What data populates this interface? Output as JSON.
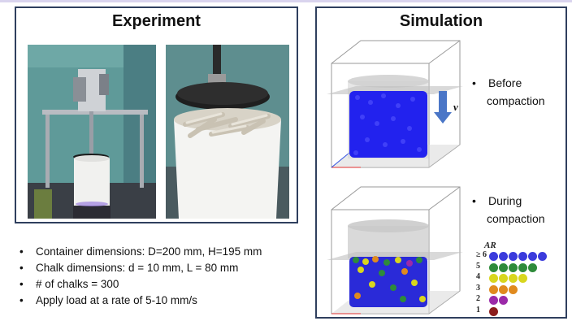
{
  "experiment": {
    "title": "Experiment",
    "bullets": [
      "Container dimensions: D=200 mm, H=195 mm",
      "Chalk dimensions: d = 10 mm, L = 80 mm",
      "# of chalks = 300",
      "Apply load at a rate of 5-10 mm/s"
    ]
  },
  "simulation": {
    "title": "Simulation",
    "before_label_1": "Before",
    "before_label_2": "compaction",
    "during_label_1": "During",
    "during_label_2": "compaction",
    "velocity_symbol": "v",
    "legend": {
      "title": "AR",
      "rows": [
        {
          "label": "≥ 6",
          "count": 6,
          "color": "#3b3bdc"
        },
        {
          "label": "5",
          "count": 5,
          "color": "#2e8b3a"
        },
        {
          "label": "4",
          "count": 4,
          "color": "#d8d61e"
        },
        {
          "label": "3",
          "count": 3,
          "color": "#e08a1e"
        },
        {
          "label": "2",
          "count": 2,
          "color": "#9b2aa8"
        },
        {
          "label": "1",
          "count": 1,
          "color": "#8b1d1d"
        }
      ]
    }
  },
  "colors": {
    "panel_border": "#2f3f5e",
    "arrow": "#4a76c7",
    "particles": "#2222ee"
  }
}
